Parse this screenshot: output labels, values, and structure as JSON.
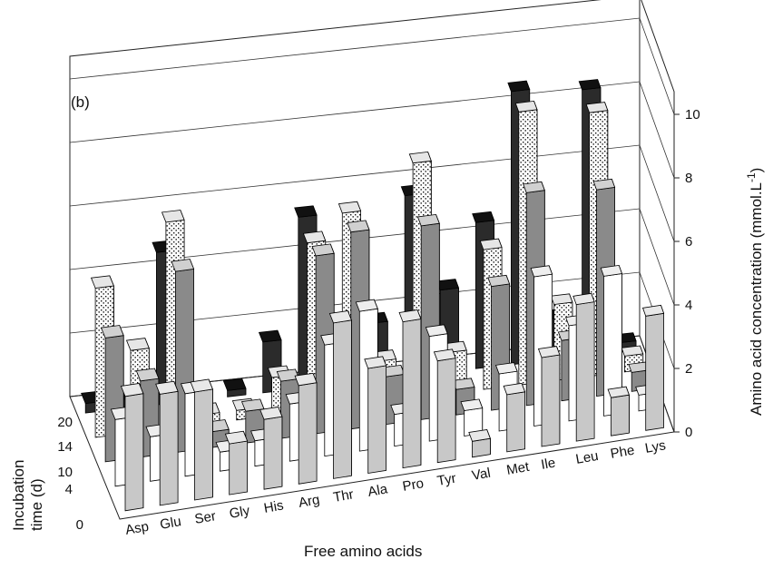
{
  "chart_data": {
    "type": "bar",
    "panel_label": "(b)",
    "xlabel": "Free amino acids",
    "ylabel": "Amino acid concentration (mmol.L",
    "ylabel_sup": "-1",
    "ylabel_close": ")",
    "zlabel_line1": "Incubation",
    "zlabel_line2": "time (d)",
    "ylim": [
      0,
      10
    ],
    "y_ticks": [
      "0",
      "2",
      "4",
      "6",
      "8",
      "10"
    ],
    "z_ticks": [
      "0",
      "4",
      "10",
      "14",
      "20"
    ],
    "categories": [
      "Asp",
      "Glu",
      "Ser",
      "Gly",
      "His",
      "Arg",
      "Thr",
      "Ala",
      "Pro",
      "Tyr",
      "Val",
      "Met",
      "Ile",
      "Leu",
      "Phe",
      "Lys"
    ],
    "series": [
      {
        "name": "20",
        "values": [
          0.3,
          0.3,
          4.8,
          0.2,
          0.2,
          1.6,
          5.4,
          1.2,
          1.8,
          5.7,
          2.6,
          4.6,
          8.6,
          1.3,
          8.4,
          0.3
        ]
      },
      {
        "name": "14",
        "values": [
          4.7,
          2.6,
          6.5,
          0.3,
          0.3,
          1.2,
          5.3,
          6.1,
          1.3,
          7.4,
          1.3,
          4.4,
          8.6,
          2.4,
          8.3,
          0.5
        ]
      },
      {
        "name": "10",
        "values": [
          3.9,
          2.4,
          5.7,
          0.5,
          1.0,
          1.8,
          5.6,
          6.2,
          1.5,
          6.1,
          0.8,
          3.9,
          6.7,
          1.9,
          6.5,
          0.6
        ]
      },
      {
        "name": "4",
        "values": [
          2.1,
          1.4,
          2.6,
          0.6,
          0.8,
          1.8,
          3.5,
          4.4,
          1.0,
          3.3,
          0.8,
          1.8,
          4.7,
          3.0,
          4.4,
          0.5
        ]
      },
      {
        "name": "0",
        "values": [
          3.6,
          3.5,
          3.4,
          1.6,
          2.2,
          3.1,
          4.9,
          3.3,
          4.6,
          3.2,
          0.5,
          1.8,
          2.8,
          4.3,
          1.2,
          3.6
        ]
      }
    ]
  }
}
